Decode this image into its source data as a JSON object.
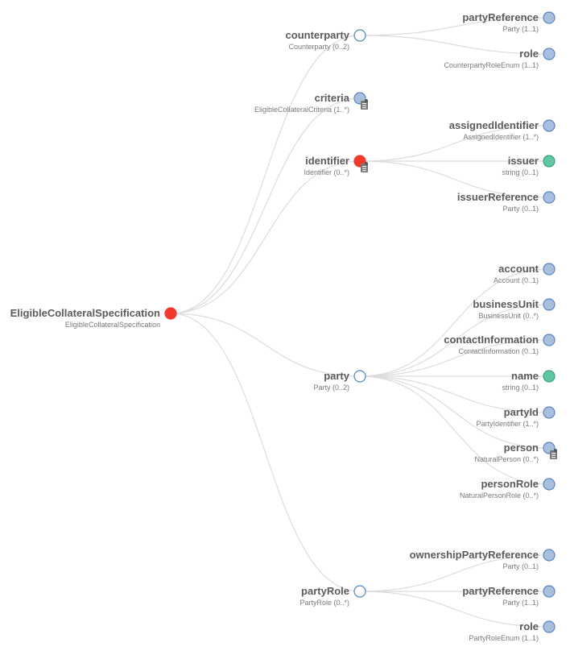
{
  "colors": {
    "hollow": "#ffffff",
    "hollow_stroke": "#4f86c6",
    "complex": "#a9bfdf",
    "complex_stroke": "#5a86c0",
    "selected": "#f2392d",
    "primitive": "#5ec8a5",
    "primitive_stroke": "#3f9d80",
    "link": "#dcdcdc"
  },
  "root": {
    "name": "EligibleCollateralSpecification",
    "type": "EligibleCollateralSpecification",
    "kind": "selected"
  },
  "children": [
    {
      "name": "counterparty",
      "type": "Counterparty (0..2)",
      "kind": "hollow",
      "children": [
        {
          "name": "partyReference",
          "type": "Party (1..1)",
          "kind": "complex"
        },
        {
          "name": "role",
          "type": "CounterpartyRoleEnum (1..1)",
          "kind": "complex"
        }
      ]
    },
    {
      "name": "criteria",
      "type": "EligibleCollateralCriteria (1..*)",
      "kind": "complex",
      "doc_icon": true,
      "children": []
    },
    {
      "name": "identifier",
      "type": "Identifier (0..*)",
      "kind": "selected",
      "doc_icon": true,
      "children": [
        {
          "name": "assignedIdentifier",
          "type": "AssignedIdentifier (1..*)",
          "kind": "complex"
        },
        {
          "name": "issuer",
          "type": "string (0..1)",
          "kind": "primitive"
        },
        {
          "name": "issuerReference",
          "type": "Party (0..1)",
          "kind": "complex"
        }
      ]
    },
    {
      "name": "party",
      "type": "Party (0..2)",
      "kind": "hollow",
      "children": [
        {
          "name": "account",
          "type": "Account (0..1)",
          "kind": "complex"
        },
        {
          "name": "businessUnit",
          "type": "BusinessUnit (0..*)",
          "kind": "complex"
        },
        {
          "name": "contactInformation",
          "type": "ContactInformation (0..1)",
          "kind": "complex"
        },
        {
          "name": "name",
          "type": "string (0..1)",
          "kind": "primitive"
        },
        {
          "name": "partyId",
          "type": "PartyIdentifier (1..*)",
          "kind": "complex"
        },
        {
          "name": "person",
          "type": "NaturalPerson (0..*)",
          "kind": "complex",
          "doc_icon": true
        },
        {
          "name": "personRole",
          "type": "NaturalPersonRole (0..*)",
          "kind": "complex"
        }
      ]
    },
    {
      "name": "partyRole",
      "type": "PartyRole (0..*)",
      "kind": "hollow",
      "children": [
        {
          "name": "ownershipPartyReference",
          "type": "Party (0..1)",
          "kind": "complex"
        },
        {
          "name": "partyReference",
          "type": "Party (1..1)",
          "kind": "complex"
        },
        {
          "name": "role",
          "type": "PartyRoleEnum (1..1)",
          "kind": "complex"
        }
      ]
    }
  ]
}
